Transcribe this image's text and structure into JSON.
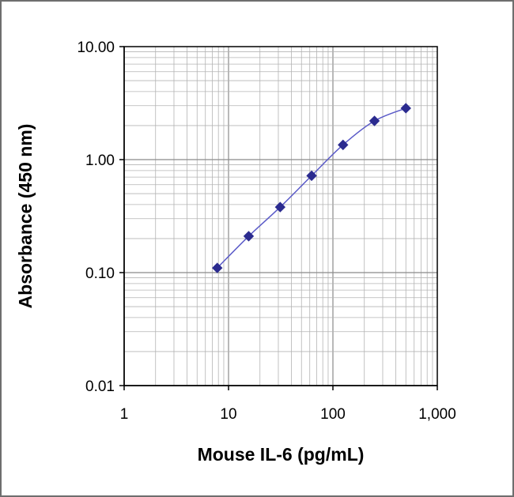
{
  "chart_data": {
    "type": "scatter",
    "title": "",
    "xlabel": "Mouse IL-6 (pg/mL)",
    "ylabel": "Absorbance (450 nm)",
    "x_scale": "log",
    "y_scale": "log",
    "xlim": [
      1,
      1000
    ],
    "ylim": [
      0.01,
      10
    ],
    "x_ticks": [
      "1",
      "10",
      "100",
      "1,000"
    ],
    "y_ticks": [
      "0.01",
      "0.10",
      "1.00",
      "10.00"
    ],
    "grid": true,
    "legend": "none",
    "series": [
      {
        "color": "#2b2b8f",
        "line_color": "#5a5ac8",
        "marker": "diamond",
        "smooth": true,
        "x": [
          7.8,
          15.6,
          31.25,
          62.5,
          125,
          250,
          500
        ],
        "y": [
          0.11,
          0.21,
          0.38,
          0.72,
          1.35,
          2.2,
          2.85
        ]
      }
    ]
  }
}
